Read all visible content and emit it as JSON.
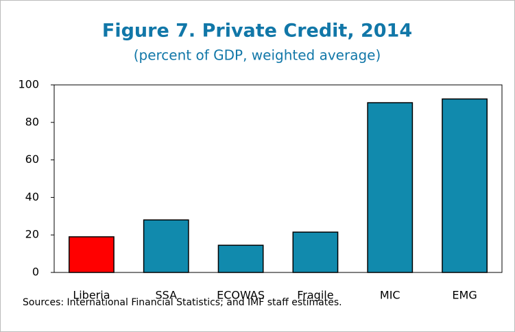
{
  "chart_data": {
    "type": "bar",
    "title": "Figure 7. Private Credit, 2014",
    "subtitle": "(percent of GDP, weighted average)",
    "categories": [
      "Liberia",
      "SSA",
      "ECOWAS",
      "Fragile",
      "MIC",
      "EMG"
    ],
    "values": [
      19,
      28,
      14.5,
      21.5,
      90.5,
      92.5
    ],
    "colors": [
      "#ff0000",
      "#118aad",
      "#118aad",
      "#118aad",
      "#118aad",
      "#118aad"
    ],
    "ylim": [
      0,
      100
    ],
    "yticks": [
      0,
      20,
      40,
      60,
      80,
      100
    ],
    "grid": false,
    "source": "Sources: International Financial Statistics; and IMF staff estimates."
  }
}
